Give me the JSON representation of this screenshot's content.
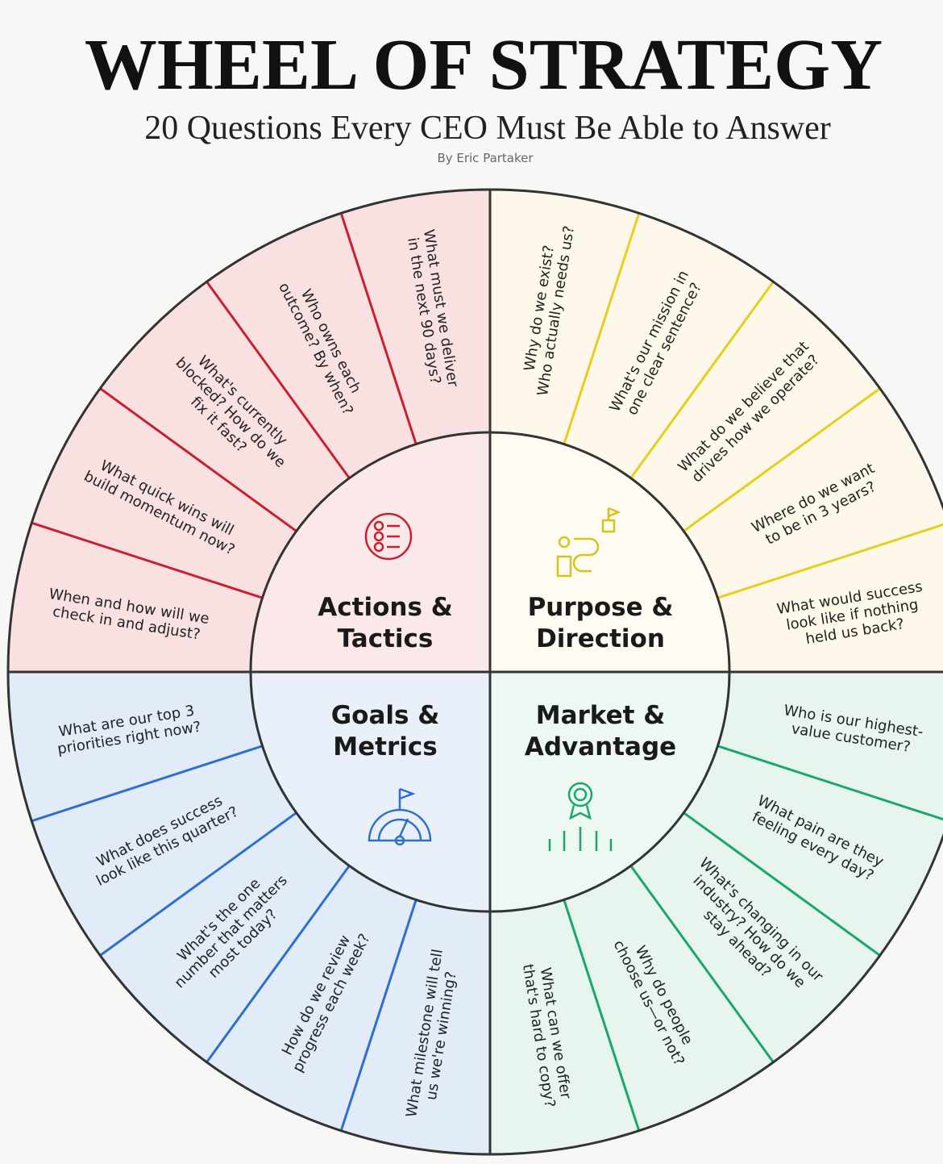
{
  "header": {
    "title": "WHEEL OF STRATEGY",
    "subtitle": "20 Questions Every CEO Must Be Able to Answer",
    "byline": "By Eric Partaker"
  },
  "quadrants": [
    {
      "label": [
        "Actions &",
        "Tactics"
      ],
      "questions": [
        [
          "When and how will we",
          "check in and adjust?"
        ],
        [
          "What quick wins will",
          "build momentum now?"
        ],
        [
          "What's currently",
          "blocked? How do we",
          "fix it fast?"
        ],
        [
          "Who owns each",
          "outcome? By when?"
        ],
        [
          "What must we deliver",
          "in the next 90 days?"
        ]
      ]
    },
    {
      "label": [
        "Purpose &",
        "Direction"
      ],
      "questions": [
        [
          "Why do we exist?",
          "Who actually needs us?"
        ],
        [
          "What's our mission in",
          "one clear sentence?"
        ],
        [
          "What do we believe that",
          "drives how we operate?"
        ],
        [
          "Where do we want",
          "to be in 3 years?"
        ],
        [
          "What would success",
          "look like if nothing",
          "held us back?"
        ]
      ]
    },
    {
      "label": [
        "Market &",
        "Advantage"
      ],
      "questions": [
        [
          "Who is our highest-",
          "value customer?"
        ],
        [
          "What pain are they",
          "feeling every day?"
        ],
        [
          "What's changing in our",
          "industry? How do we",
          "stay ahead?"
        ],
        [
          "Why do people",
          "choose us—or not?"
        ],
        [
          "What can we offer",
          "that's hard to copy?"
        ]
      ]
    },
    {
      "label": [
        "Goals &",
        "Metrics"
      ],
      "questions": [
        [
          "What milestone will tell",
          "us we're winning?"
        ],
        [
          "How do we review",
          "progress each week?"
        ],
        [
          "What's the one",
          "number that matters",
          "most today?"
        ],
        [
          "What does success",
          "look like this quarter?"
        ],
        [
          "What are our top 3",
          "priorities right now?"
        ]
      ]
    }
  ]
}
